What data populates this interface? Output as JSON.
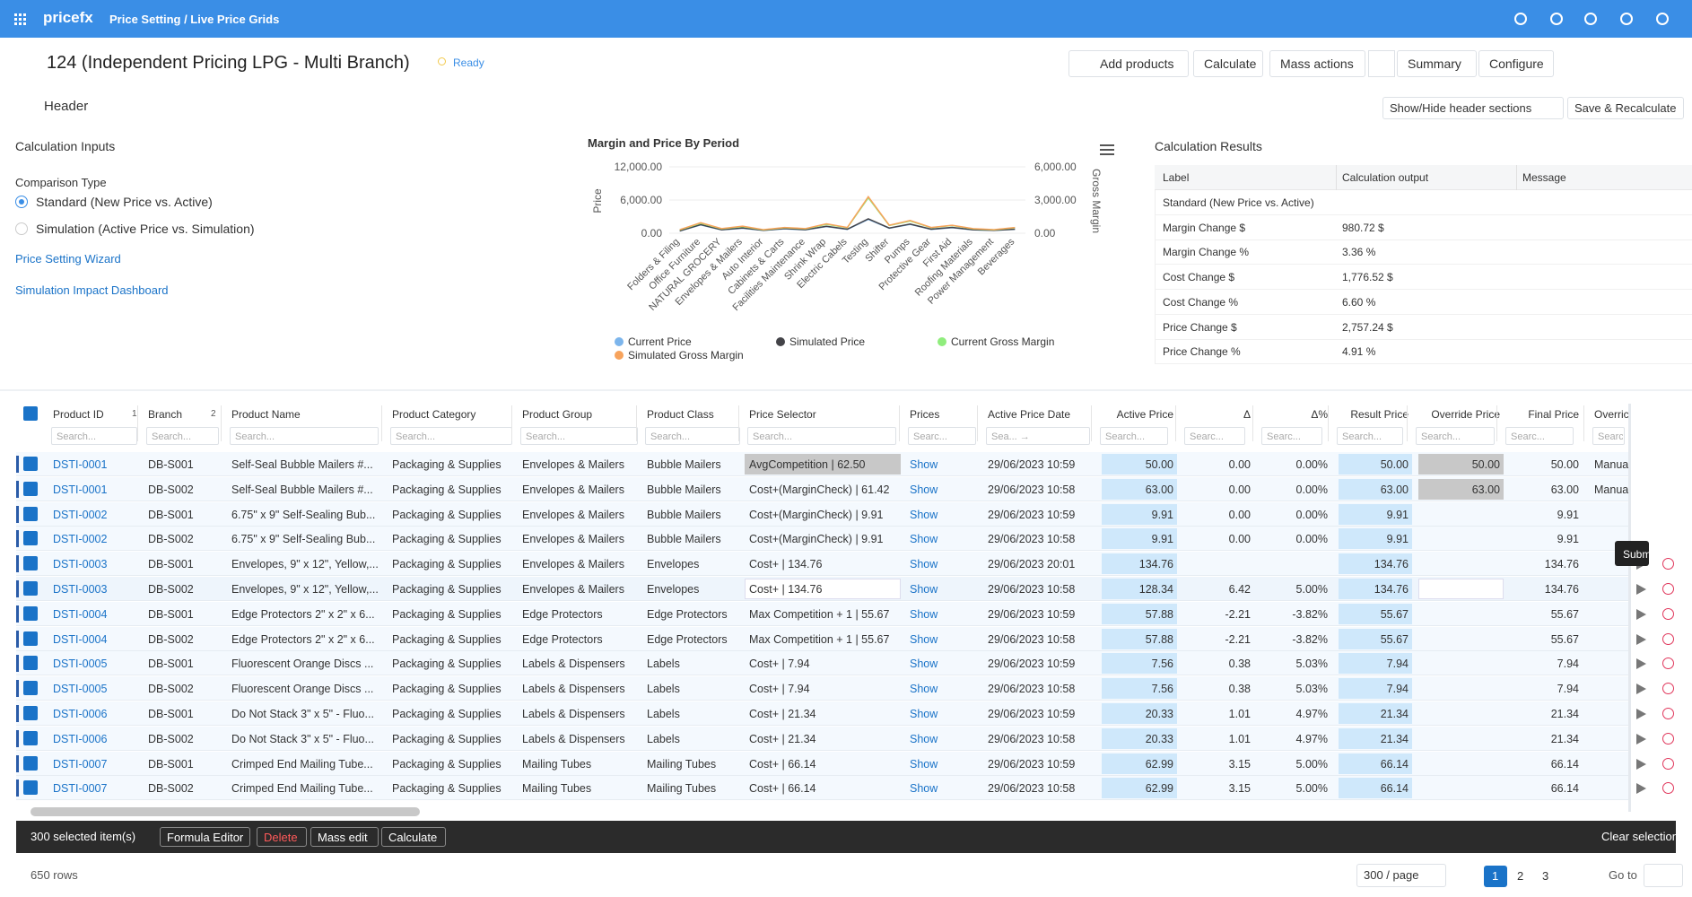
{
  "topbar": {
    "brand": "pricefx",
    "breadcrumb": "Price Setting / Live Price Grids"
  },
  "titlebar": {
    "title": "124 (Independent Pricing LPG - Multi Branch)",
    "status": "Ready",
    "buttons": [
      "Add products",
      "Calculate",
      "Mass actions",
      "Summary",
      "Configure"
    ]
  },
  "header": {
    "label": "Header",
    "buttons": [
      "Show/Hide header sections",
      "Save & Recalculate"
    ]
  },
  "inputs": {
    "title": "Calculation Inputs",
    "comparison_label": "Comparison Type",
    "options": [
      "Standard (New Price vs. Active)",
      "Simulation (Active Price vs. Simulation)"
    ],
    "links": [
      "Price Setting Wizard",
      "Simulation Impact Dashboard"
    ]
  },
  "chart": {
    "type": "line",
    "title": "Margin and Price By Period",
    "ylabel": "Price",
    "y2label": "Gross Margin",
    "categories": [
      "Folders & Filing",
      "Office Furniture",
      "NATURAL GROCERY",
      "Envelopes & Mailers",
      "Auto Interior",
      "Cabinets & Carts",
      "Facilities Maintenance",
      "Shrink Wrap",
      "Electric Cabels",
      "Testing",
      "Shifter",
      "Pumps",
      "Protective Gear",
      "First Aid",
      "Roofing Materials",
      "Power Management",
      "Beverages"
    ],
    "ylim": [
      0,
      12000
    ],
    "yticks": [
      {
        "value": 0,
        "label": "0.00"
      },
      {
        "value": 6000,
        "label": "6,000.00"
      },
      {
        "value": 12000,
        "label": "12,000.00"
      }
    ],
    "y2lim": [
      0,
      6000
    ],
    "y2ticks": [
      {
        "value": 0,
        "label": "0.00"
      },
      {
        "value": 3000,
        "label": "3,000.00"
      },
      {
        "value": 6000,
        "label": "6,000.00"
      }
    ],
    "series": [
      {
        "name": "Current Price",
        "color": "#7cb5ec",
        "values": [
          400,
          1500,
          600,
          900,
          500,
          800,
          600,
          1200,
          700,
          2500,
          900,
          1600,
          700,
          1000,
          600,
          500,
          700
        ]
      },
      {
        "name": "Simulated Price",
        "color": "#434348",
        "values": [
          420,
          1550,
          620,
          950,
          520,
          850,
          640,
          1250,
          730,
          2600,
          940,
          1650,
          730,
          1050,
          620,
          520,
          720
        ]
      },
      {
        "name": "Current Gross Margin",
        "color": "#90ed7d",
        "axis": "y2",
        "values": [
          300,
          900,
          400,
          600,
          300,
          500,
          400,
          800,
          500,
          3200,
          700,
          1100,
          500,
          700,
          400,
          300,
          500
        ]
      },
      {
        "name": "Simulated Gross Margin",
        "color": "#f7a35c",
        "axis": "y2",
        "values": [
          320,
          950,
          420,
          640,
          320,
          520,
          420,
          850,
          520,
          3300,
          720,
          1150,
          520,
          720,
          420,
          320,
          520
        ]
      }
    ]
  },
  "results": {
    "title": "Calculation Results",
    "columns": [
      "Label",
      "Calculation output",
      "Message"
    ],
    "rows": [
      [
        "Standard (New Price vs. Active)"
      ],
      [
        "Margin Change $",
        "980.72 $"
      ],
      [
        "Margin Change %",
        "3.36 %"
      ],
      [
        "Cost Change $",
        "1,776.52 $"
      ],
      [
        "Cost Change %",
        "6.60 %"
      ],
      [
        "Price Change $",
        "2,757.24 $"
      ],
      [
        "Price Change %",
        "4.91 %"
      ]
    ]
  },
  "grid": {
    "columns": [
      "Product ID",
      "Branch",
      "Product Name",
      "Product Category",
      "Product Group",
      "Product Class",
      "Price Selector",
      "Prices",
      "Active Price Date",
      "Active Price",
      "Δ",
      "Δ%",
      "Result Price",
      "Override Price",
      "Final Price",
      "Overric"
    ],
    "sort": {
      "Product ID": "1",
      "Branch": "2"
    },
    "placeholders": [
      "Search...",
      "Search...",
      "Search...",
      "Search...",
      "Search...",
      "Search...",
      "Search...",
      "Searc...",
      "Sea... →",
      "Search...",
      "Searc...",
      "Searc...",
      "Search...",
      "Search...",
      "Searc...",
      "Searc"
    ],
    "rows": [
      [
        "DSTI-0001",
        "DB-S001",
        "Self-Seal Bubble Mailers #...",
        "Packaging & Supplies",
        "Envelopes & Mailers",
        "Bubble Mailers",
        "AvgCompetition | 62.50",
        "Show",
        "29/06/2023 10:59",
        "50.00",
        "0.00",
        "0.00%",
        "50.00",
        "50.00",
        "50.00",
        "Manual"
      ],
      [
        "DSTI-0001",
        "DB-S002",
        "Self-Seal Bubble Mailers #...",
        "Packaging & Supplies",
        "Envelopes & Mailers",
        "Bubble Mailers",
        "Cost+(MarginCheck) | 61.42",
        "Show",
        "29/06/2023 10:58",
        "63.00",
        "0.00",
        "0.00%",
        "63.00",
        "63.00",
        "63.00",
        "Manual"
      ],
      [
        "DSTI-0002",
        "DB-S001",
        "6.75\" x 9\" Self-Sealing Bub...",
        "Packaging & Supplies",
        "Envelopes & Mailers",
        "Bubble Mailers",
        "Cost+(MarginCheck) | 9.91",
        "Show",
        "29/06/2023 10:59",
        "9.91",
        "0.00",
        "0.00%",
        "9.91",
        null,
        "9.91",
        null
      ],
      [
        "DSTI-0002",
        "DB-S002",
        "6.75\" x 9\" Self-Sealing Bub...",
        "Packaging & Supplies",
        "Envelopes & Mailers",
        "Bubble Mailers",
        "Cost+(MarginCheck) | 9.91",
        "Show",
        "29/06/2023 10:58",
        "9.91",
        "0.00",
        "0.00%",
        "9.91",
        null,
        "9.91",
        null
      ],
      [
        "DSTI-0003",
        "DB-S001",
        "Envelopes, 9\" x 12\", Yellow,...",
        "Packaging & Supplies",
        "Envelopes & Mailers",
        "Envelopes",
        "Cost+ | 134.76",
        "Show",
        "29/06/2023 20:01",
        "134.76",
        null,
        null,
        "134.76",
        null,
        "134.76",
        null
      ],
      [
        "DSTI-0003",
        "DB-S002",
        "Envelopes, 9\" x 12\", Yellow,...",
        "Packaging & Supplies",
        "Envelopes & Mailers",
        "Envelopes",
        "Cost+ | 134.76",
        "Show",
        "29/06/2023 10:58",
        "128.34",
        "6.42",
        "5.00%",
        "134.76",
        null,
        "134.76",
        null
      ],
      [
        "DSTI-0004",
        "DB-S001",
        "Edge Protectors 2\" x 2\" x 6...",
        "Packaging & Supplies",
        "Edge Protectors",
        "Edge Protectors",
        "Max Competition + 1 | 55.67",
        "Show",
        "29/06/2023 10:59",
        "57.88",
        "-2.21",
        "-3.82%",
        "55.67",
        null,
        "55.67",
        null
      ],
      [
        "DSTI-0004",
        "DB-S002",
        "Edge Protectors 2\" x 2\" x 6...",
        "Packaging & Supplies",
        "Edge Protectors",
        "Edge Protectors",
        "Max Competition + 1 | 55.67",
        "Show",
        "29/06/2023 10:58",
        "57.88",
        "-2.21",
        "-3.82%",
        "55.67",
        null,
        "55.67",
        null
      ],
      [
        "DSTI-0005",
        "DB-S001",
        "Fluorescent Orange Discs ...",
        "Packaging & Supplies",
        "Labels & Dispensers",
        "Labels",
        "Cost+ | 7.94",
        "Show",
        "29/06/2023 10:59",
        "7.56",
        "0.38",
        "5.03%",
        "7.94",
        null,
        "7.94",
        null
      ],
      [
        "DSTI-0005",
        "DB-S002",
        "Fluorescent Orange Discs ...",
        "Packaging & Supplies",
        "Labels & Dispensers",
        "Labels",
        "Cost+ | 7.94",
        "Show",
        "29/06/2023 10:58",
        "7.56",
        "0.38",
        "5.03%",
        "7.94",
        null,
        "7.94",
        null
      ],
      [
        "DSTI-0006",
        "DB-S001",
        "Do Not Stack 3\" x 5\" - Fluo...",
        "Packaging & Supplies",
        "Labels & Dispensers",
        "Labels",
        "Cost+ | 21.34",
        "Show",
        "29/06/2023 10:59",
        "20.33",
        "1.01",
        "4.97%",
        "21.34",
        null,
        "21.34",
        null
      ],
      [
        "DSTI-0006",
        "DB-S002",
        "Do Not Stack 3\" x 5\" - Fluo...",
        "Packaging & Supplies",
        "Labels & Dispensers",
        "Labels",
        "Cost+ | 21.34",
        "Show",
        "29/06/2023 10:58",
        "20.33",
        "1.01",
        "4.97%",
        "21.34",
        null,
        "21.34",
        null
      ],
      [
        "DSTI-0007",
        "DB-S001",
        "Crimped End Mailing Tube...",
        "Packaging & Supplies",
        "Mailing Tubes",
        "Mailing Tubes",
        "Cost+ | 66.14",
        "Show",
        "29/06/2023 10:59",
        "62.99",
        "3.15",
        "5.00%",
        "66.14",
        null,
        "66.14",
        null
      ],
      [
        "DSTI-0007",
        "DB-S002",
        "Crimped End Mailing Tube...",
        "Packaging & Supplies",
        "Mailing Tubes",
        "Mailing Tubes",
        "Cost+ | 66.14",
        "Show",
        "29/06/2023 10:58",
        "62.99",
        "3.15",
        "5.00%",
        "66.14",
        null,
        "66.14",
        null
      ]
    ]
  },
  "tooltip": "Submit",
  "selection": {
    "count": "300 selected item(s)",
    "buttons": [
      "Formula Editor",
      "Delete",
      "Mass edit",
      "Calculate"
    ],
    "clear": "Clear selection"
  },
  "footer": {
    "rows": "650 rows",
    "page_size": "300 / page",
    "pages": [
      "1",
      "2",
      "3"
    ],
    "goto": "Go to"
  }
}
